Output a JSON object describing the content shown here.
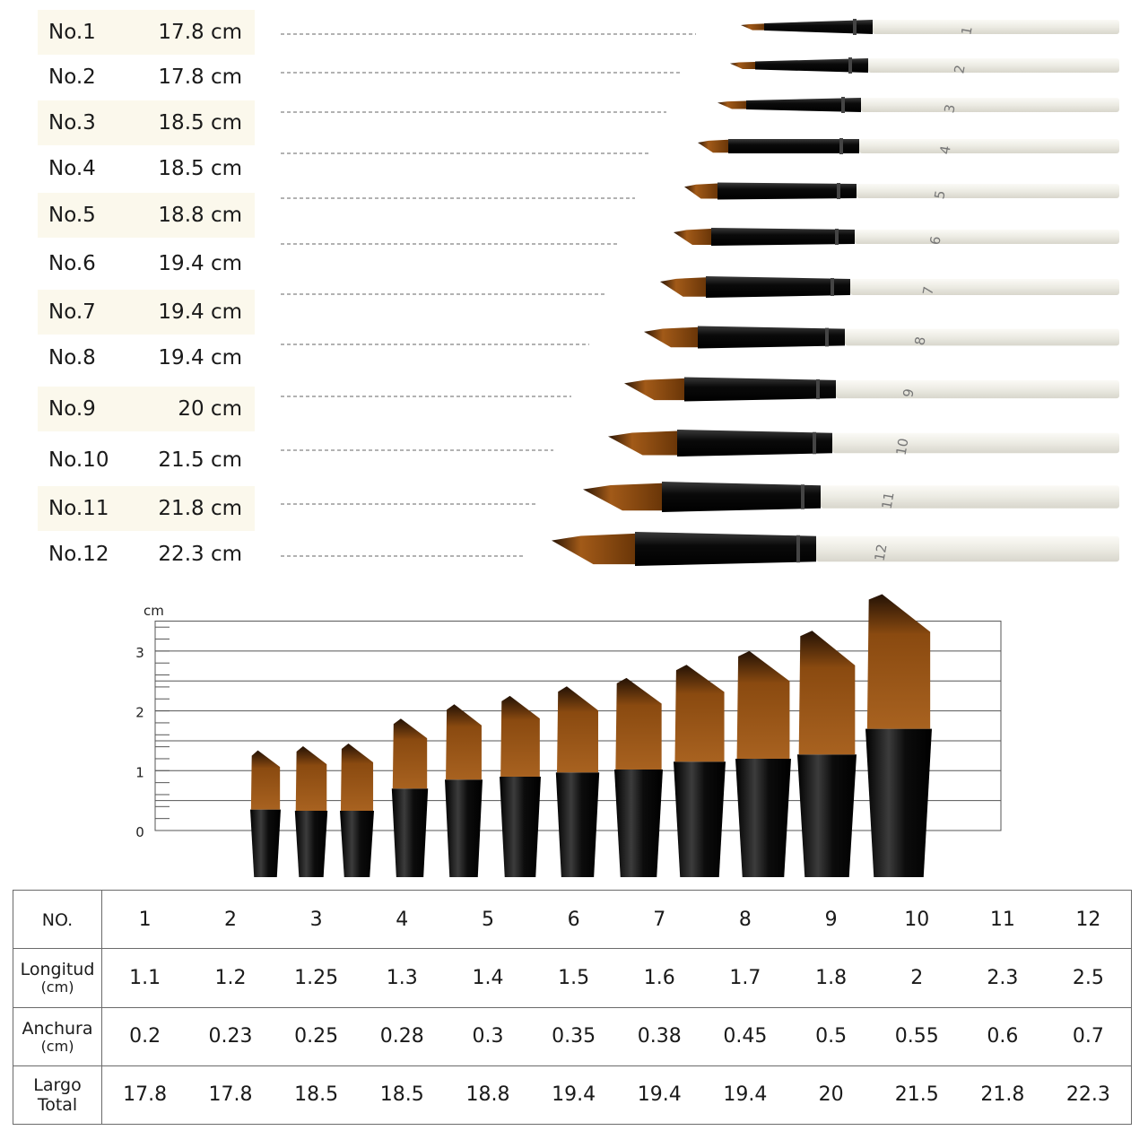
{
  "sizes": [
    {
      "no": "No.1",
      "length": "17.8 cm"
    },
    {
      "no": "No.2",
      "length": "17.8 cm"
    },
    {
      "no": "No.3",
      "length": "18.5 cm"
    },
    {
      "no": "No.4",
      "length": "18.5 cm"
    },
    {
      "no": "No.5",
      "length": "18.8 cm"
    },
    {
      "no": "No.6",
      "length": "19.4 cm"
    },
    {
      "no": "No.7",
      "length": "19.4 cm"
    },
    {
      "no": "No.8",
      "length": "19.4 cm"
    },
    {
      "no": "No.9",
      "length": "20 cm"
    },
    {
      "no": "No.10",
      "length": "21.5 cm"
    },
    {
      "no": "No.11",
      "length": "21.8 cm"
    },
    {
      "no": "No.12",
      "length": "22.3 cm"
    }
  ],
  "brush_numbers": [
    "1",
    "2",
    "3",
    "4",
    "5",
    "6",
    "7",
    "8",
    "9",
    "10",
    "11",
    "12"
  ],
  "chart": {
    "unit": "cm",
    "y_ticks": [
      "0",
      "1",
      "2",
      "3"
    ],
    "bristle_lengths": [
      1.1,
      1.2,
      1.25,
      1.3,
      1.4,
      1.5,
      1.6,
      1.7,
      1.8,
      2,
      2.3,
      2.5
    ],
    "bristle_widths": [
      0.2,
      0.23,
      0.25,
      0.28,
      0.3,
      0.35,
      0.38,
      0.45,
      0.5,
      0.55,
      0.6,
      0.7
    ]
  },
  "table": {
    "header": {
      "label": "NO.",
      "values": [
        "1",
        "2",
        "3",
        "4",
        "5",
        "6",
        "7",
        "8",
        "9",
        "10",
        "11",
        "12"
      ]
    },
    "longitud": {
      "label": "Longitud",
      "unit": "(cm)",
      "values": [
        "1.1",
        "1.2",
        "1.25",
        "1.3",
        "1.4",
        "1.5",
        "1.6",
        "1.7",
        "1.8",
        "2",
        "2.3",
        "2.5"
      ]
    },
    "anchura": {
      "label": "Anchura",
      "unit": "(cm)",
      "values": [
        "0.2",
        "0.23",
        "0.25",
        "0.28",
        "0.3",
        "0.35",
        "0.38",
        "0.45",
        "0.5",
        "0.55",
        "0.6",
        "0.7"
      ]
    },
    "largo": {
      "label": "Largo",
      "label2": "Total",
      "values": [
        "17.8",
        "17.8",
        "18.5",
        "18.5",
        "18.8",
        "19.4",
        "19.4",
        "19.4",
        "20",
        "21.5",
        "21.8",
        "22.3"
      ]
    }
  },
  "colors": {
    "bristle": "#8a4a10",
    "ferrule": "#111111",
    "handle": "#f2f0ea",
    "row_shade": "#fbf8ec"
  }
}
